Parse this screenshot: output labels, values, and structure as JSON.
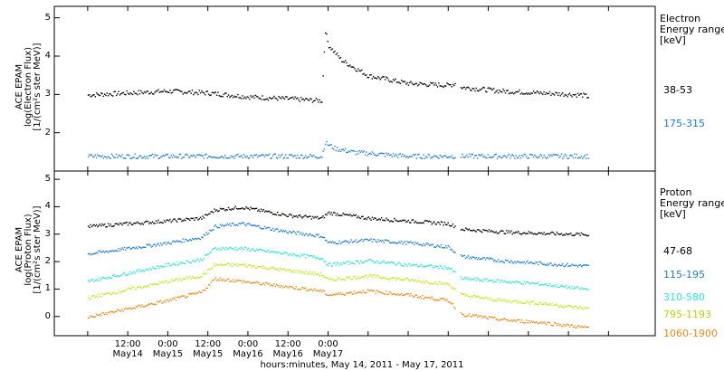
{
  "chart_data": [
    {
      "type": "scatter",
      "panel": "electron",
      "ylabel": "ACE EPAM\nlog(Electron Flux)\n[1/(cm²s ster MeV)]",
      "ylim": [
        1.0,
        5.3
      ],
      "yticks": [
        2,
        3,
        4,
        5
      ],
      "legend_title": "Electron\nEnergy range\n[keV]",
      "series": [
        {
          "name": "38-53",
          "color": "#000000",
          "x": [
            0,
            12,
            24,
            36,
            48,
            60,
            70,
            71,
            72,
            76,
            84,
            96,
            108,
            110,
            112,
            124,
            136,
            148,
            150
          ],
          "y": [
            3.0,
            3.05,
            3.1,
            3.05,
            2.95,
            2.9,
            2.85,
            4.7,
            4.3,
            3.9,
            3.5,
            3.3,
            3.25,
            3.3,
            3.2,
            3.1,
            3.05,
            3.0,
            2.95
          ]
        },
        {
          "name": "175-315",
          "color": "#1e7bd6",
          "x": [
            0,
            24,
            48,
            70,
            71,
            74,
            80,
            96,
            108,
            112,
            136,
            150
          ],
          "y": [
            1.4,
            1.4,
            1.4,
            1.4,
            1.75,
            1.6,
            1.5,
            1.4,
            1.4,
            1.4,
            1.4,
            1.4
          ]
        }
      ]
    },
    {
      "type": "scatter",
      "panel": "proton",
      "ylabel": "ACE EPAM\nlog(Proton Flux)\n[1/(cm²s ster MeV)]",
      "ylim": [
        -0.7,
        5.3
      ],
      "yticks": [
        0,
        1,
        2,
        3,
        4,
        5
      ],
      "legend_title": "Proton\nEnergy range\n[keV]",
      "series": [
        {
          "name": "47-68",
          "color": "#000000",
          "x": [
            0,
            12,
            24,
            34,
            38,
            46,
            60,
            70,
            72,
            84,
            96,
            108,
            112,
            124,
            136,
            150
          ],
          "y": [
            3.3,
            3.4,
            3.5,
            3.6,
            3.9,
            4.0,
            3.7,
            3.6,
            3.8,
            3.6,
            3.5,
            3.4,
            3.2,
            3.1,
            3.05,
            3.0
          ]
        },
        {
          "name": "115-195",
          "color": "#1e7bd6",
          "x": [
            0,
            12,
            24,
            34,
            38,
            46,
            60,
            70,
            72,
            84,
            96,
            108,
            112,
            124,
            136,
            150
          ],
          "y": [
            2.3,
            2.5,
            2.7,
            2.9,
            3.3,
            3.4,
            3.1,
            2.95,
            2.7,
            2.8,
            2.7,
            2.55,
            2.2,
            2.05,
            1.95,
            1.85
          ]
        },
        {
          "name": "310-580",
          "color": "#2ee6d2",
          "x": [
            0,
            12,
            24,
            34,
            38,
            46,
            60,
            70,
            72,
            84,
            96,
            108,
            112,
            124,
            136,
            150
          ],
          "y": [
            1.3,
            1.6,
            1.9,
            2.1,
            2.5,
            2.5,
            2.3,
            2.15,
            1.9,
            2.05,
            1.9,
            1.8,
            1.4,
            1.3,
            1.2,
            1.0
          ]
        },
        {
          "name": "795-1193",
          "color": "#c8e61e",
          "x": [
            0,
            12,
            24,
            34,
            38,
            46,
            60,
            70,
            72,
            84,
            96,
            108,
            112,
            124,
            136,
            150
          ],
          "y": [
            0.7,
            1.0,
            1.3,
            1.5,
            1.9,
            1.9,
            1.7,
            1.55,
            1.35,
            1.5,
            1.35,
            1.2,
            0.8,
            0.6,
            0.5,
            0.3
          ]
        },
        {
          "name": "1060-1900",
          "color": "#ee8a1c",
          "x": [
            0,
            12,
            24,
            34,
            38,
            46,
            60,
            70,
            72,
            84,
            96,
            108,
            112,
            124,
            136,
            150
          ],
          "y": [
            0.0,
            0.3,
            0.6,
            0.9,
            1.4,
            1.3,
            1.1,
            0.95,
            0.8,
            0.95,
            0.8,
            0.6,
            0.1,
            -0.1,
            -0.2,
            -0.4
          ]
        }
      ]
    }
  ],
  "x_axis": {
    "xlim_hours": [
      -10,
      170
    ],
    "ticks_hours": [
      0,
      12,
      24,
      36,
      48,
      60,
      72,
      84,
      96,
      108,
      120,
      132,
      144,
      156
    ],
    "major_tick_labels": [
      {
        "hours": 12,
        "time": "12:00",
        "date": "May14"
      },
      {
        "hours": 24,
        "time": "0:00",
        "date": "May15"
      },
      {
        "hours": 36,
        "time": "12:00",
        "date": "May15"
      },
      {
        "hours": 48,
        "time": "0:00",
        "date": "May16"
      },
      {
        "hours": 60,
        "time": "12:00",
        "date": "May16"
      },
      {
        "hours": 72,
        "time": "0:00",
        "date": "May17"
      }
    ],
    "title": "hours:minutes, May 14, 2011 - May 17, 2011"
  }
}
